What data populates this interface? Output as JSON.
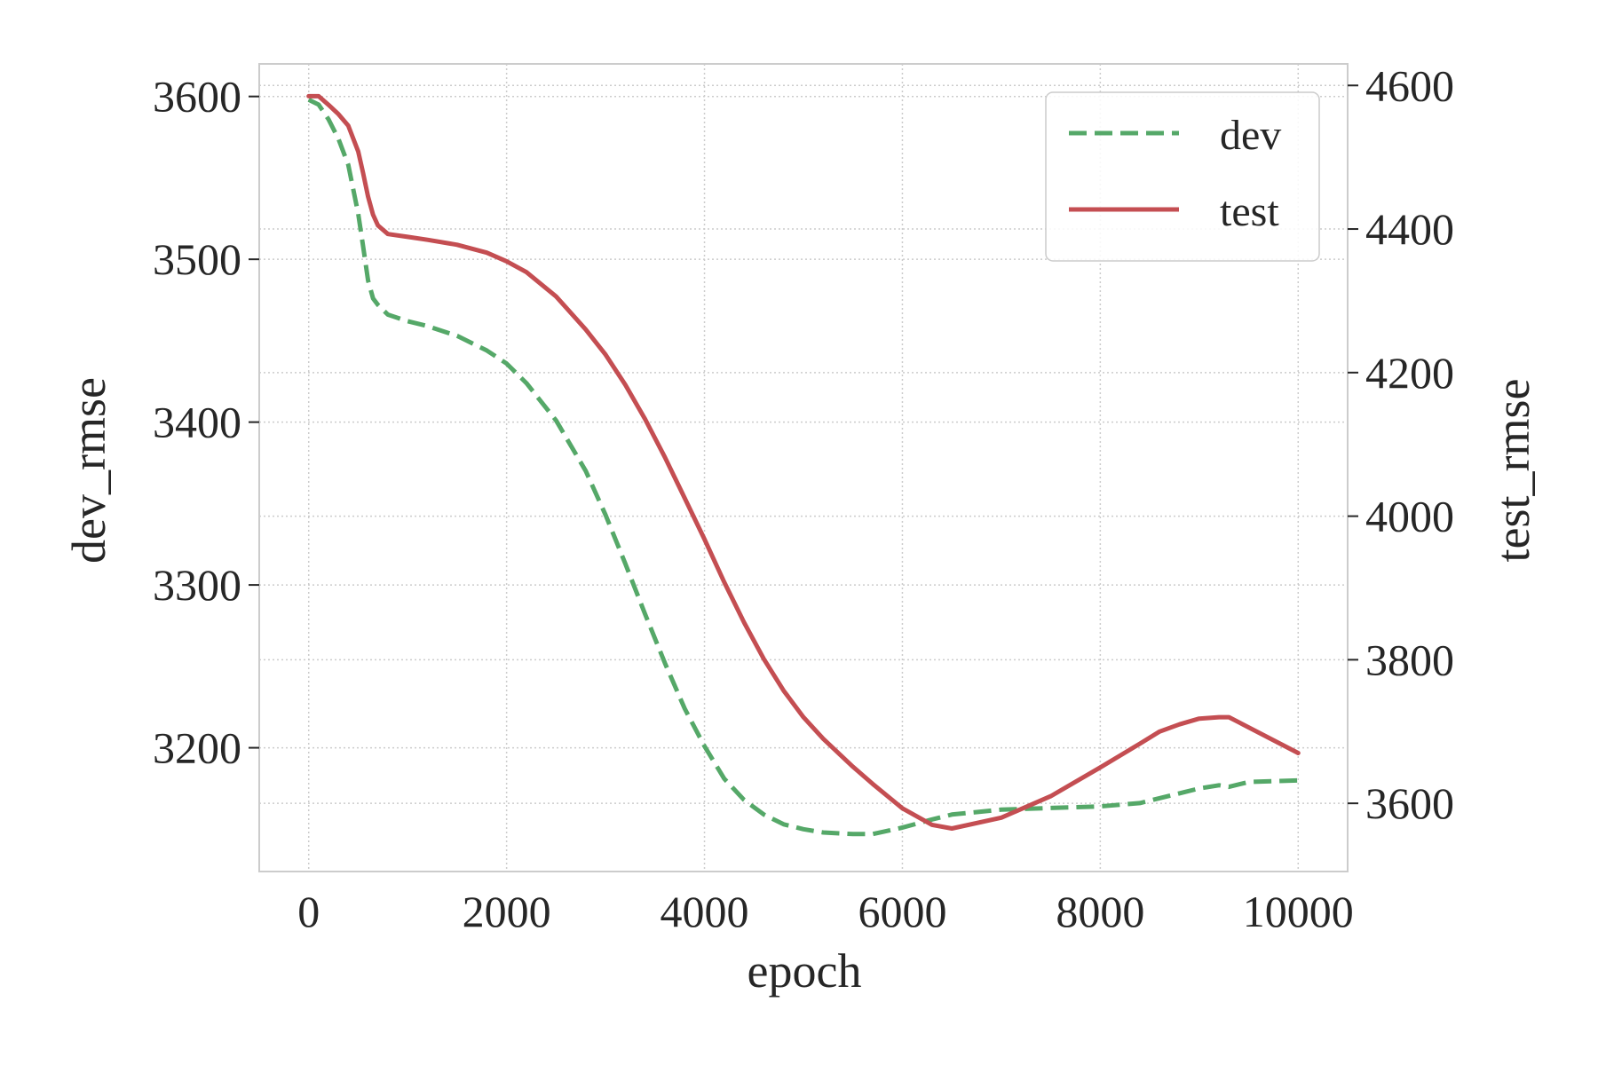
{
  "chart_data": {
    "type": "line",
    "xlabel": "epoch",
    "ylabel_left": "dev_rmse",
    "ylabel_right": "test_rmse",
    "xlim": [
      -500,
      10500
    ],
    "ylim_left": [
      3124,
      3620
    ],
    "ylim_right": [
      3505,
      4630
    ],
    "x_ticks": [
      0,
      2000,
      4000,
      6000,
      8000,
      10000
    ],
    "y_ticks_left": [
      3200,
      3300,
      3400,
      3500,
      3600
    ],
    "y_ticks_right": [
      3600,
      3800,
      4000,
      4200,
      4400,
      4600
    ],
    "grid": true,
    "legend_position": "upper right",
    "series": [
      {
        "name": "dev",
        "axis": "left",
        "style": "dashed",
        "color": "#55a868",
        "x": [
          0,
          100,
          200,
          300,
          400,
          500,
          550,
          600,
          650,
          700,
          800,
          1000,
          1200,
          1500,
          1800,
          2000,
          2200,
          2500,
          2800,
          3000,
          3200,
          3400,
          3600,
          3800,
          4000,
          4200,
          4400,
          4600,
          4800,
          5000,
          5200,
          5500,
          5700,
          6000,
          6300,
          6500,
          7000,
          7500,
          8000,
          8400,
          8800,
          9000,
          9200,
          9300,
          9500,
          10000
        ],
        "y": [
          3598,
          3595,
          3586,
          3574,
          3558,
          3528,
          3508,
          3487,
          3476,
          3472,
          3466,
          3462,
          3459,
          3453,
          3444,
          3436,
          3424,
          3401,
          3370,
          3343,
          3313,
          3282,
          3252,
          3224,
          3201,
          3181,
          3168,
          3159,
          3153,
          3150,
          3148,
          3147,
          3147,
          3151,
          3156,
          3159,
          3162,
          3163,
          3164,
          3166,
          3172,
          3175,
          3177,
          3176,
          3179,
          3180
        ]
      },
      {
        "name": "test",
        "axis": "right",
        "style": "solid",
        "color": "#c44e52",
        "x": [
          0,
          100,
          200,
          300,
          400,
          500,
          550,
          600,
          650,
          700,
          800,
          1000,
          1200,
          1500,
          1800,
          2000,
          2200,
          2500,
          2800,
          3000,
          3200,
          3400,
          3600,
          3800,
          4000,
          4200,
          4400,
          4600,
          4800,
          5000,
          5200,
          5500,
          5700,
          6000,
          6300,
          6500,
          7000,
          7500,
          8000,
          8400,
          8600,
          8800,
          9000,
          9200,
          9300,
          9400,
          10000
        ],
        "y": [
          4585,
          4585,
          4573,
          4560,
          4544,
          4508,
          4478,
          4445,
          4420,
          4405,
          4393,
          4389,
          4385,
          4378,
          4367,
          4355,
          4340,
          4306,
          4260,
          4225,
          4183,
          4135,
          4082,
          4025,
          3968,
          3908,
          3852,
          3801,
          3757,
          3720,
          3690,
          3651,
          3627,
          3593,
          3570,
          3565,
          3580,
          3610,
          3650,
          3683,
          3700,
          3710,
          3718,
          3720,
          3720,
          3713,
          3670
        ]
      }
    ]
  }
}
